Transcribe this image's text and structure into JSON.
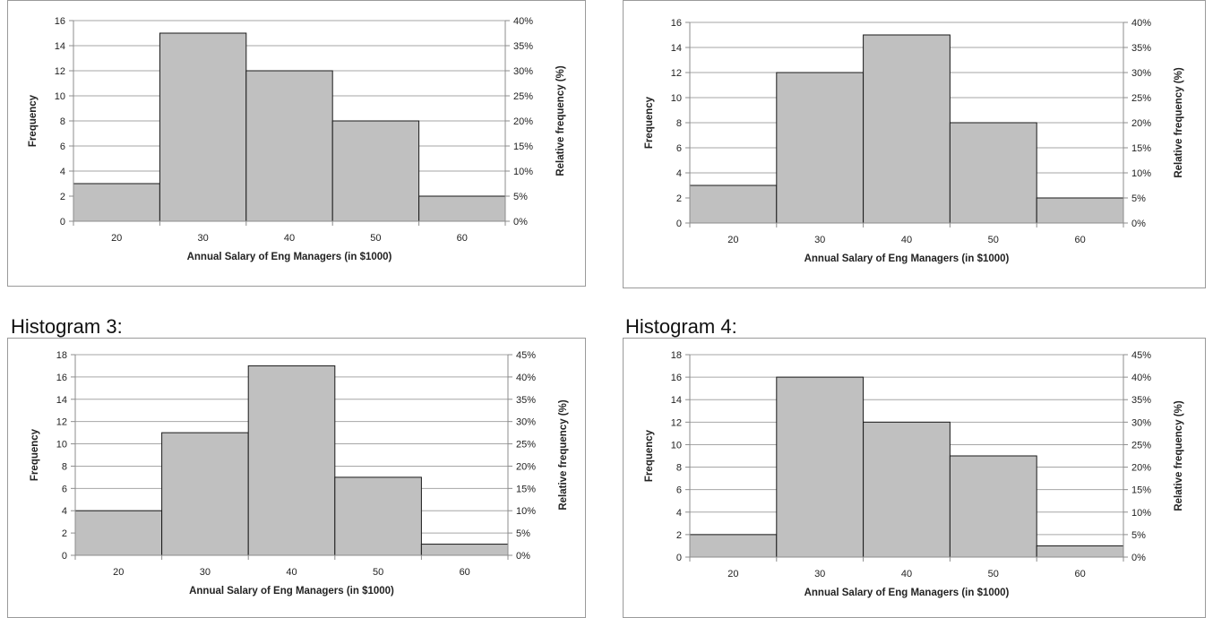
{
  "charts": [
    {
      "heading": "",
      "chart_data": {
        "type": "bar",
        "categories": [
          "20",
          "30",
          "40",
          "50",
          "60"
        ],
        "values": [
          3,
          15,
          12,
          8,
          2
        ],
        "xlabel": "Annual Salary of Eng Managers (in $1000)",
        "ylabel": "Frequency",
        "y2label": "Relative frequency (%)",
        "ylim": [
          0,
          16
        ],
        "yticks": [
          0,
          2,
          4,
          6,
          8,
          10,
          12,
          14,
          16
        ],
        "y2ticks": [
          "0%",
          "5%",
          "10%",
          "15%",
          "20%",
          "25%",
          "30%",
          "35%",
          "40%"
        ],
        "grid": true
      }
    },
    {
      "heading": "",
      "chart_data": {
        "type": "bar",
        "categories": [
          "20",
          "30",
          "40",
          "50",
          "60"
        ],
        "values": [
          3,
          12,
          15,
          8,
          2
        ],
        "xlabel": "Annual Salary of Eng Managers (in $1000)",
        "ylabel": "Frequency",
        "y2label": "Relative frequency (%)",
        "ylim": [
          0,
          16
        ],
        "yticks": [
          0,
          2,
          4,
          6,
          8,
          10,
          12,
          14,
          16
        ],
        "y2ticks": [
          "0%",
          "5%",
          "10%",
          "15%",
          "20%",
          "25%",
          "30%",
          "35%",
          "40%"
        ],
        "grid": true
      }
    },
    {
      "heading": "Histogram 3:",
      "chart_data": {
        "type": "bar",
        "categories": [
          "20",
          "30",
          "40",
          "50",
          "60"
        ],
        "values": [
          4,
          11,
          17,
          7,
          1
        ],
        "xlabel": "Annual Salary of Eng Managers (in $1000)",
        "ylabel": "Frequency",
        "y2label": "Relative frequency (%)",
        "ylim": [
          0,
          18
        ],
        "yticks": [
          0,
          2,
          4,
          6,
          8,
          10,
          12,
          14,
          16,
          18
        ],
        "y2ticks": [
          "0%",
          "5%",
          "10%",
          "15%",
          "20%",
          "25%",
          "30%",
          "35%",
          "40%",
          "45%"
        ],
        "grid": true
      }
    },
    {
      "heading": "Histogram 4:",
      "chart_data": {
        "type": "bar",
        "categories": [
          "20",
          "30",
          "40",
          "50",
          "60"
        ],
        "values": [
          2,
          16,
          12,
          9,
          1
        ],
        "xlabel": "Annual Salary of Eng Managers (in $1000)",
        "ylabel": "Frequency",
        "y2label": "Relative frequency (%)",
        "ylim": [
          0,
          18
        ],
        "yticks": [
          0,
          2,
          4,
          6,
          8,
          10,
          12,
          14,
          16,
          18
        ],
        "y2ticks": [
          "0%",
          "5%",
          "10%",
          "15%",
          "20%",
          "25%",
          "30%",
          "35%",
          "40%",
          "45%"
        ],
        "grid": true
      }
    }
  ]
}
